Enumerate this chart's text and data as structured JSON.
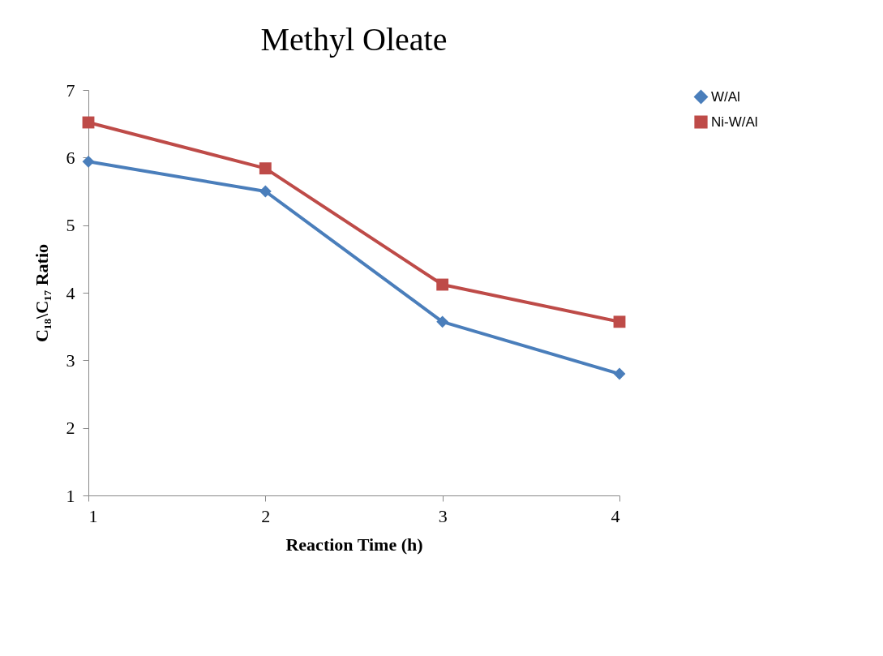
{
  "chart_data": {
    "type": "line",
    "title": "Methyl Oleate",
    "xlabel": "Reaction Time (h)",
    "ylabel": "C₁₈\\C₁₇ Ratio",
    "x": [
      1,
      2,
      3,
      4
    ],
    "series": [
      {
        "name": "W/Al",
        "color": "#4a7ebb",
        "marker": "diamond",
        "values": [
          5.94,
          5.5,
          3.57,
          2.8
        ]
      },
      {
        "name": "Ni-W/Al",
        "color": "#be4b48",
        "marker": "square",
        "values": [
          6.52,
          5.84,
          4.12,
          3.57
        ]
      }
    ],
    "xlim": [
      1,
      4
    ],
    "xticks": [
      1,
      2,
      3,
      4
    ],
    "ylim": [
      1,
      7
    ],
    "yticks": [
      1,
      2,
      3,
      4,
      5,
      6,
      7
    ],
    "grid": false,
    "legend": "right",
    "line_style": "solid"
  }
}
